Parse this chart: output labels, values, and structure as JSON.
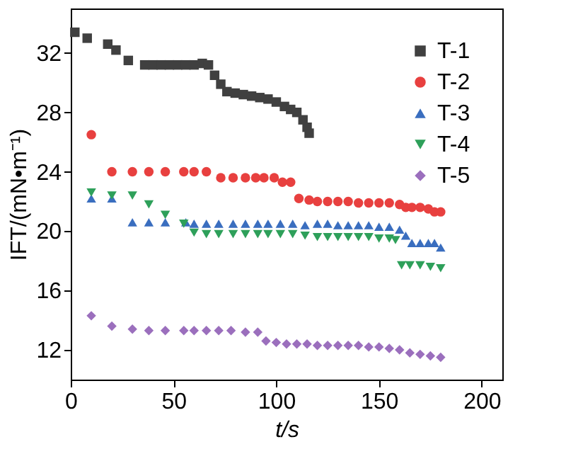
{
  "chart_data": {
    "type": "scatter",
    "xlabel": "t/s",
    "ylabel": "IFT/(mN•m⁻¹)",
    "xlim": [
      0,
      210
    ],
    "xticks": [
      0,
      50,
      100,
      150,
      200
    ],
    "ylim": [
      10,
      35
    ],
    "yticks": [
      12,
      16,
      20,
      24,
      28,
      32
    ],
    "grid": false,
    "legend": "top right",
    "series": [
      {
        "name": "T-1",
        "color": "#404040",
        "marker": "square",
        "x": [
          2,
          8,
          18,
          22,
          28,
          36,
          40,
          44,
          48,
          52,
          56,
          60,
          64,
          67,
          70,
          73,
          76,
          80,
          84,
          88,
          92,
          96,
          100,
          104,
          107,
          110,
          113,
          115,
          116
        ],
        "values": [
          33.4,
          33.0,
          32.6,
          32.2,
          31.5,
          31.2,
          31.2,
          31.2,
          31.2,
          31.2,
          31.2,
          31.2,
          31.3,
          31.2,
          30.5,
          29.9,
          29.4,
          29.3,
          29.2,
          29.1,
          29.0,
          28.9,
          28.7,
          28.4,
          28.2,
          28.0,
          27.5,
          27.0,
          26.6
        ]
      },
      {
        "name": "T-2",
        "color": "#e8403f",
        "marker": "circle",
        "x": [
          10,
          20,
          30,
          38,
          46,
          55,
          60,
          66,
          73,
          79,
          85,
          90,
          94,
          99,
          103,
          107,
          111,
          116,
          120,
          125,
          130,
          135,
          140,
          145,
          150,
          155,
          160,
          163,
          166,
          170,
          174,
          177,
          180
        ],
        "values": [
          26.5,
          24.0,
          24.0,
          24.0,
          24.0,
          24.0,
          24.0,
          24.0,
          23.6,
          23.6,
          23.6,
          23.6,
          23.6,
          23.6,
          23.3,
          23.3,
          22.2,
          22.1,
          22.0,
          22.0,
          22.0,
          22.0,
          21.9,
          21.9,
          21.9,
          21.9,
          21.8,
          21.6,
          21.6,
          21.6,
          21.5,
          21.3,
          21.3
        ]
      },
      {
        "name": "T-3",
        "color": "#3a6ebf",
        "marker": "triangle",
        "x": [
          10,
          20,
          30,
          38,
          46,
          56,
          60,
          66,
          72,
          79,
          85,
          91,
          96,
          102,
          108,
          114,
          120,
          125,
          130,
          135,
          140,
          145,
          150,
          155,
          160,
          163,
          166,
          170,
          174,
          177,
          180
        ],
        "values": [
          22.2,
          22.2,
          20.6,
          20.6,
          20.6,
          20.6,
          20.5,
          20.5,
          20.5,
          20.5,
          20.5,
          20.5,
          20.5,
          20.5,
          20.5,
          20.4,
          20.5,
          20.5,
          20.4,
          20.4,
          20.4,
          20.4,
          20.3,
          20.3,
          20.1,
          19.7,
          19.2,
          19.2,
          19.2,
          19.2,
          18.9
        ]
      },
      {
        "name": "T-4",
        "color": "#2ea05a",
        "marker": "triangle-down",
        "x": [
          10,
          20,
          30,
          38,
          46,
          55,
          60,
          66,
          72,
          79,
          85,
          91,
          96,
          102,
          108,
          114,
          120,
          125,
          130,
          135,
          140,
          145,
          150,
          155,
          158,
          161,
          165,
          170,
          175,
          180
        ],
        "values": [
          22.6,
          22.4,
          22.4,
          21.8,
          21.1,
          20.5,
          19.9,
          19.8,
          19.8,
          19.8,
          19.8,
          19.8,
          19.8,
          19.8,
          19.8,
          19.7,
          19.6,
          19.6,
          19.6,
          19.6,
          19.6,
          19.6,
          19.5,
          19.5,
          19.4,
          17.7,
          17.7,
          17.7,
          17.6,
          17.5
        ]
      },
      {
        "name": "T-5",
        "color": "#9b6fbd",
        "marker": "diamond",
        "x": [
          10,
          20,
          30,
          38,
          46,
          55,
          60,
          66,
          72,
          78,
          85,
          91,
          95,
          100,
          105,
          110,
          115,
          120,
          125,
          130,
          135,
          140,
          145,
          150,
          155,
          160,
          165,
          170,
          175,
          180
        ],
        "values": [
          14.3,
          13.6,
          13.4,
          13.3,
          13.3,
          13.3,
          13.3,
          13.3,
          13.3,
          13.3,
          13.2,
          13.2,
          12.6,
          12.5,
          12.4,
          12.4,
          12.4,
          12.3,
          12.3,
          12.3,
          12.3,
          12.3,
          12.2,
          12.2,
          12.1,
          12.0,
          11.8,
          11.7,
          11.6,
          11.5
        ]
      }
    ]
  }
}
